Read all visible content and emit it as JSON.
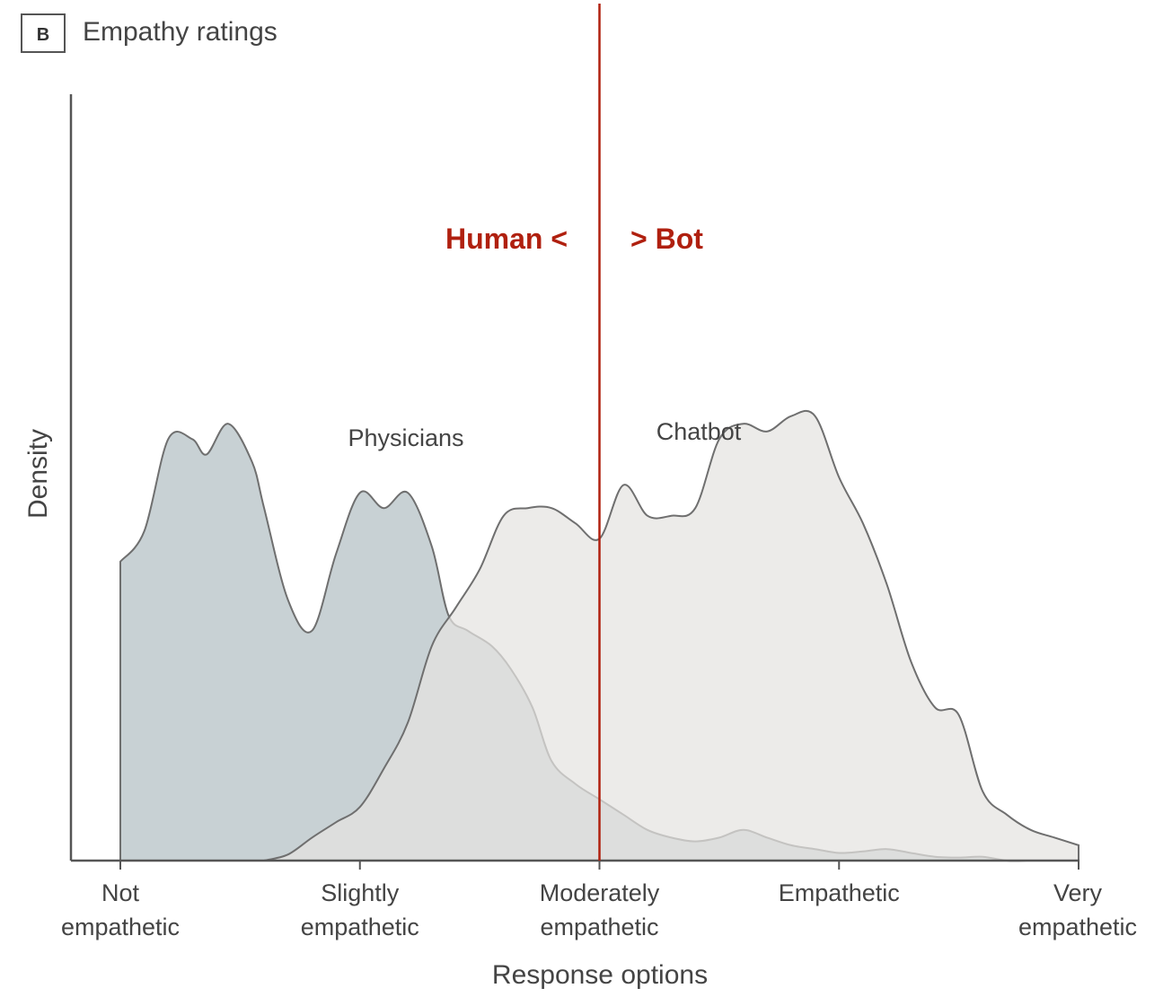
{
  "chart_data": {
    "type": "area",
    "panel_letter": "B",
    "title": "Empathy ratings",
    "xlabel": "Response options",
    "ylabel": "Density",
    "x_range": [
      1,
      5
    ],
    "y_range": [
      0,
      1
    ],
    "categories": [
      [
        "Not",
        "empathetic"
      ],
      [
        "Slightly",
        "empathetic"
      ],
      [
        "Moderately",
        "empathetic"
      ],
      [
        "Empathetic"
      ],
      [
        "Very",
        "empathetic"
      ]
    ],
    "series": [
      {
        "name": "Physicians",
        "color": "#c8d1d4",
        "x": [
          1.0,
          1.1,
          1.2,
          1.3,
          1.36,
          1.45,
          1.55,
          1.6,
          1.7,
          1.8,
          1.9,
          2.0,
          2.1,
          2.2,
          2.3,
          2.37,
          2.45,
          2.55,
          2.63,
          2.72,
          2.8,
          2.9,
          3.0,
          3.1,
          3.2,
          3.3,
          3.4,
          3.5,
          3.6,
          3.7,
          3.8,
          3.9,
          4.0,
          4.1,
          4.2,
          4.3,
          4.4,
          4.5,
          4.6,
          4.7,
          4.8,
          4.9,
          5.0
        ],
        "y": [
          0.39,
          0.43,
          0.55,
          0.55,
          0.53,
          0.57,
          0.52,
          0.46,
          0.34,
          0.3,
          0.4,
          0.48,
          0.46,
          0.48,
          0.41,
          0.32,
          0.3,
          0.28,
          0.25,
          0.2,
          0.13,
          0.1,
          0.08,
          0.06,
          0.04,
          0.03,
          0.025,
          0.03,
          0.04,
          0.03,
          0.02,
          0.015,
          0.01,
          0.012,
          0.015,
          0.01,
          0.005,
          0.004,
          0.005,
          0.0,
          0.0,
          0.0,
          0.0
        ]
      },
      {
        "name": "Chatbot",
        "color": "#e4e3e1",
        "x": [
          1.6,
          1.7,
          1.8,
          1.9,
          2.0,
          2.1,
          2.2,
          2.3,
          2.4,
          2.5,
          2.6,
          2.7,
          2.8,
          2.9,
          3.0,
          3.1,
          3.2,
          3.3,
          3.4,
          3.5,
          3.6,
          3.7,
          3.8,
          3.9,
          4.0,
          4.1,
          4.2,
          4.3,
          4.4,
          4.5,
          4.6,
          4.7,
          4.8,
          4.9,
          5.0
        ],
        "y": [
          0.0,
          0.008,
          0.03,
          0.05,
          0.07,
          0.12,
          0.18,
          0.28,
          0.33,
          0.38,
          0.45,
          0.46,
          0.46,
          0.44,
          0.42,
          0.49,
          0.45,
          0.45,
          0.46,
          0.55,
          0.57,
          0.56,
          0.58,
          0.58,
          0.5,
          0.44,
          0.36,
          0.26,
          0.2,
          0.19,
          0.09,
          0.06,
          0.04,
          0.03,
          0.02
        ]
      }
    ],
    "divider": {
      "x": 3.0,
      "color": "#b0200f"
    },
    "annotations": {
      "left": "Human <",
      "right": "> Bot",
      "color": "#b0200f"
    }
  }
}
